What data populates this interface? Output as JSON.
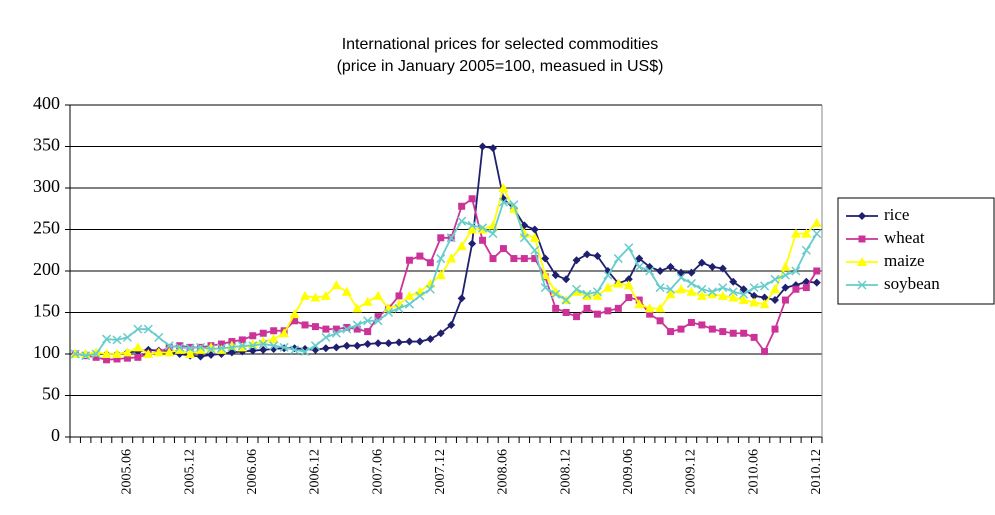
{
  "chart_data": {
    "type": "line",
    "title": "International prices for selected commodities",
    "subtitle": "(price in January 2005=100, measued in US$)",
    "categories": [
      null,
      null,
      null,
      null,
      null,
      "2005.06",
      null,
      null,
      null,
      null,
      null,
      "2005.12",
      null,
      null,
      null,
      null,
      null,
      "2006.06",
      null,
      null,
      null,
      null,
      null,
      "2006.12",
      null,
      null,
      null,
      null,
      null,
      "2007.06",
      null,
      null,
      null,
      null,
      null,
      "2007.12",
      null,
      null,
      null,
      null,
      null,
      "2008.06",
      null,
      null,
      null,
      null,
      null,
      "2008.12",
      null,
      null,
      null,
      null,
      null,
      "2009.06",
      null,
      null,
      null,
      null,
      null,
      "2009.12",
      null,
      null,
      null,
      null,
      null,
      "2010.06",
      null,
      null,
      null,
      null,
      null,
      "2010.12"
    ],
    "ylim": [
      0,
      400
    ],
    "yticks": [
      0,
      50,
      100,
      150,
      200,
      250,
      300,
      350,
      400
    ],
    "grid": true,
    "legend": "right",
    "series": [
      {
        "name": "rice",
        "color": "#1f1f6e",
        "marker": "diamond",
        "values": [
          100,
          100,
          100,
          100,
          100,
          102,
          103,
          105,
          104,
          103,
          100,
          98,
          97,
          99,
          100,
          102,
          103,
          104,
          105,
          106,
          107,
          107,
          106,
          105,
          107,
          108,
          110,
          110,
          112,
          113,
          113,
          114,
          115,
          115,
          118,
          125,
          135,
          167,
          233,
          350,
          348,
          287,
          275,
          255,
          250,
          215,
          195,
          190,
          213,
          220,
          218,
          200,
          185,
          190,
          215,
          205,
          200,
          205,
          198,
          198,
          210,
          205,
          203,
          187,
          178,
          170,
          168,
          165,
          180,
          183,
          187,
          186
        ]
      },
      {
        "name": "wheat",
        "color": "#cc3399",
        "marker": "square",
        "values": [
          100,
          98,
          96,
          93,
          94,
          95,
          96,
          100,
          102,
          108,
          110,
          108,
          108,
          110,
          112,
          115,
          117,
          122,
          125,
          128,
          128,
          140,
          135,
          133,
          130,
          130,
          132,
          130,
          127,
          145,
          155,
          170,
          213,
          218,
          210,
          240,
          240,
          278,
          287,
          237,
          215,
          227,
          215,
          215,
          215,
          193,
          155,
          150,
          145,
          155,
          148,
          152,
          155,
          168,
          165,
          148,
          140,
          127,
          130,
          138,
          135,
          130,
          127,
          125,
          125,
          120,
          103,
          130,
          165,
          178,
          180,
          200
        ]
      },
      {
        "name": "maize",
        "color": "#ffff00",
        "marker": "triangle",
        "values": [
          100,
          100,
          102,
          100,
          100,
          102,
          108,
          100,
          102,
          102,
          105,
          100,
          105,
          108,
          105,
          110,
          108,
          112,
          115,
          118,
          125,
          148,
          170,
          168,
          170,
          183,
          175,
          155,
          163,
          170,
          155,
          160,
          170,
          175,
          185,
          195,
          215,
          230,
          250,
          250,
          255,
          300,
          275,
          245,
          240,
          195,
          175,
          165,
          175,
          170,
          170,
          180,
          185,
          183,
          160,
          155,
          155,
          172,
          178,
          175,
          170,
          172,
          170,
          168,
          165,
          162,
          160,
          178,
          205,
          245,
          245,
          258
        ]
      },
      {
        "name": "soybean",
        "color": "#66cccc",
        "marker": "cross",
        "values": [
          100,
          98,
          100,
          118,
          117,
          120,
          130,
          130,
          120,
          110,
          108,
          107,
          108,
          106,
          107,
          108,
          110,
          110,
          112,
          110,
          108,
          105,
          103,
          110,
          120,
          125,
          130,
          135,
          140,
          140,
          150,
          155,
          160,
          170,
          178,
          215,
          240,
          260,
          255,
          252,
          245,
          283,
          280,
          240,
          225,
          180,
          172,
          165,
          178,
          172,
          175,
          195,
          215,
          228,
          205,
          200,
          180,
          178,
          192,
          185,
          178,
          175,
          180,
          175,
          172,
          180,
          182,
          190,
          195,
          200,
          225,
          245
        ]
      }
    ]
  }
}
